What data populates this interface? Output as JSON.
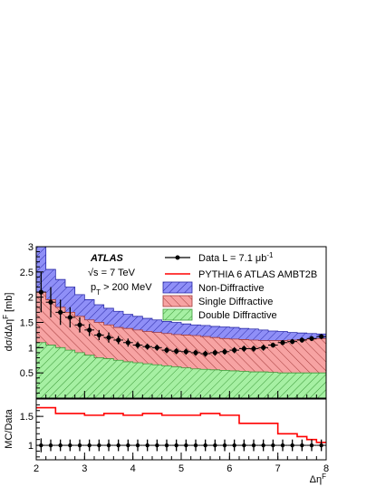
{
  "chart_data": {
    "type": "area",
    "x_label": "Δη",
    "x_label_sup": "F",
    "y_label": "dσ/dΔη",
    "y_label_sup": "F",
    "y_label_unit": "[mb]",
    "ratio_y_label": "MC/Data",
    "xlim": [
      2,
      8
    ],
    "ylim": [
      0,
      3
    ],
    "ratio_ylim": [
      0.75,
      1.8
    ],
    "x_ticks": [
      "2",
      "3",
      "4",
      "5",
      "6",
      "7",
      "8"
    ],
    "y_ticks": [
      "0.5",
      "1",
      "1.5",
      "2",
      "2.5",
      "3"
    ],
    "ratio_y_ticks": [
      "1",
      "1.5"
    ],
    "bin_edges": [
      2.0,
      2.2,
      2.4,
      2.6,
      2.8,
      3.0,
      3.2,
      3.4,
      3.6,
      3.8,
      4.0,
      4.2,
      4.4,
      4.6,
      4.8,
      5.0,
      5.2,
      5.4,
      5.6,
      5.8,
      6.0,
      6.2,
      6.4,
      6.6,
      6.8,
      7.0,
      7.2,
      7.4,
      7.6,
      7.8,
      8.0
    ],
    "annotations": {
      "experiment": "ATLAS",
      "energy": "√s = 7 TeV",
      "pt_cut_main": "p",
      "pt_cut_sub": "T",
      "pt_cut_rest": " > 200 MeV"
    },
    "legend": {
      "data": "Data L = 7.1 μb",
      "data_sup": "-1",
      "pythia": "PYTHIA 6 ATLAS AMBT2B",
      "nd": "Non-Diffractive",
      "sd": "Single Diffractive",
      "dd": "Double Diffractive"
    },
    "series": {
      "double_diffractive": [
        1.1,
        1.05,
        1.0,
        0.95,
        0.9,
        0.85,
        0.8,
        0.78,
        0.75,
        0.72,
        0.7,
        0.68,
        0.66,
        0.64,
        0.62,
        0.6,
        0.58,
        0.57,
        0.56,
        0.55,
        0.54,
        0.53,
        0.52,
        0.52,
        0.51,
        0.5,
        0.5,
        0.5,
        0.5,
        0.5
      ],
      "single_diffractive": [
        2.1,
        1.95,
        1.8,
        1.7,
        1.62,
        1.55,
        1.5,
        1.45,
        1.4,
        1.38,
        1.35,
        1.32,
        1.3,
        1.28,
        1.26,
        1.25,
        1.24,
        1.22,
        1.2,
        1.18,
        1.17,
        1.16,
        1.15,
        1.14,
        1.14,
        1.14,
        1.15,
        1.16,
        1.17,
        1.18
      ],
      "non_diffractive": [
        3.0,
        2.55,
        2.35,
        2.2,
        2.05,
        1.95,
        1.85,
        1.78,
        1.72,
        1.66,
        1.62,
        1.58,
        1.55,
        1.52,
        1.5,
        1.47,
        1.45,
        1.44,
        1.42,
        1.41,
        1.4,
        1.38,
        1.37,
        1.35,
        1.33,
        1.32,
        1.3,
        1.29,
        1.28,
        1.27
      ],
      "data_y": [
        2.1,
        1.9,
        1.7,
        1.6,
        1.45,
        1.35,
        1.25,
        1.2,
        1.15,
        1.1,
        1.05,
        1.02,
        1.0,
        0.95,
        0.93,
        0.92,
        0.9,
        0.88,
        0.9,
        0.92,
        0.95,
        0.98,
        0.98,
        1.0,
        1.05,
        1.1,
        1.12,
        1.15,
        1.18,
        1.22
      ],
      "data_err": [
        0.4,
        0.3,
        0.25,
        0.2,
        0.15,
        0.12,
        0.1,
        0.1,
        0.08,
        0.08,
        0.07,
        0.06,
        0.06,
        0.06,
        0.06,
        0.06,
        0.06,
        0.06,
        0.06,
        0.06,
        0.06,
        0.06,
        0.06,
        0.06,
        0.05,
        0.05,
        0.05,
        0.05,
        0.05,
        0.05
      ],
      "ratio_pythia": [
        1.65,
        1.65,
        1.55,
        1.55,
        1.55,
        1.52,
        1.52,
        1.55,
        1.55,
        1.52,
        1.52,
        1.55,
        1.55,
        1.52,
        1.52,
        1.52,
        1.52,
        1.55,
        1.55,
        1.52,
        1.52,
        1.38,
        1.38,
        1.38,
        1.38,
        1.2,
        1.2,
        1.15,
        1.1,
        1.05
      ],
      "ratio_data": [
        1,
        1,
        1,
        1,
        1,
        1,
        1,
        1,
        1,
        1,
        1,
        1,
        1,
        1,
        1,
        1,
        1,
        1,
        1,
        1,
        1,
        1,
        1,
        1,
        1,
        1,
        1,
        1,
        1,
        1
      ],
      "ratio_err": [
        0.12,
        0.1,
        0.1,
        0.1,
        0.1,
        0.1,
        0.1,
        0.1,
        0.1,
        0.1,
        0.1,
        0.1,
        0.1,
        0.1,
        0.1,
        0.1,
        0.1,
        0.1,
        0.1,
        0.1,
        0.1,
        0.1,
        0.1,
        0.1,
        0.1,
        0.1,
        0.1,
        0.1,
        0.1,
        0.1
      ]
    },
    "colors": {
      "nd_fill": "#8f8ff7",
      "nd_hatch": "#2a2aa8",
      "sd_fill": "#f7a3a3",
      "sd_hatch": "#a33a3a",
      "dd_fill": "#a6f0a3",
      "dd_hatch": "#3d9a3a",
      "pythia": "#ff0000",
      "data": "#000000"
    },
    "grid": false,
    "legend_position": "top-right"
  }
}
